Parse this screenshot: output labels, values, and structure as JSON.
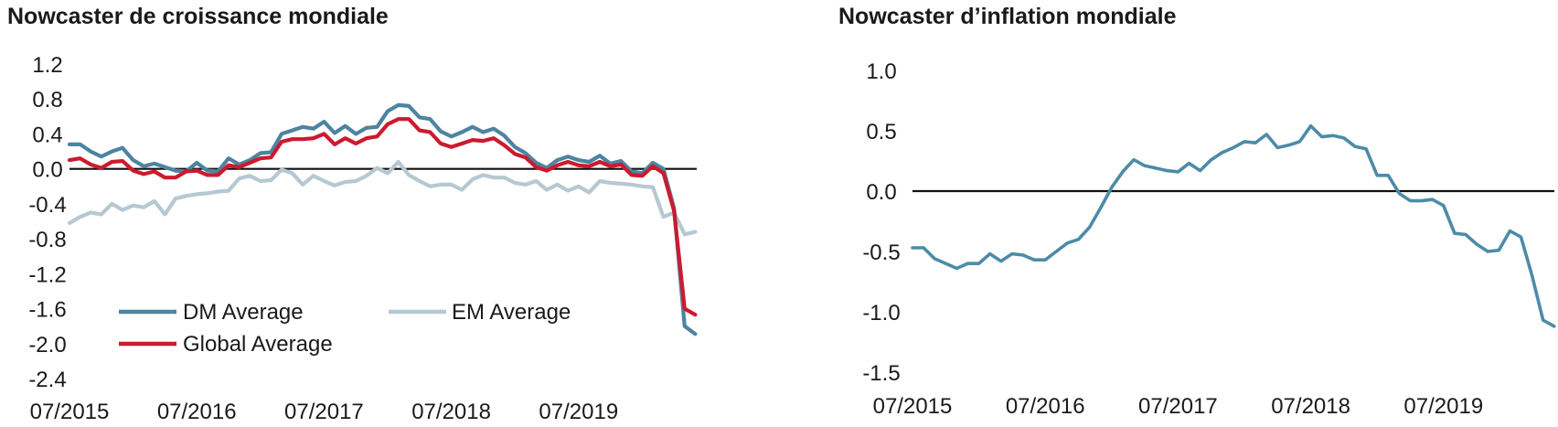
{
  "chart_data": [
    {
      "type": "line",
      "title": "Nowcaster de croissance mondiale",
      "ylim": [
        -2.4,
        1.2
      ],
      "yticks": [
        "1.2",
        "0.8",
        "0.4",
        "0.0",
        "-0.4",
        "-0.8",
        "-1.2",
        "-1.6",
        "-2.0",
        "-2.4"
      ],
      "xticks": [
        "07/2015",
        "07/2016",
        "07/2017",
        "07/2018",
        "07/2019"
      ],
      "x_start": "2015-07",
      "zero_line": true,
      "grid": false,
      "legend_position": "bottom-left",
      "series": [
        {
          "name": "DM Average",
          "color": "#4d84a0",
          "values": [
            0.28,
            0.28,
            0.2,
            0.14,
            0.2,
            0.24,
            0.1,
            0.03,
            0.06,
            0.02,
            -0.02,
            -0.03,
            0.07,
            -0.02,
            -0.03,
            0.12,
            0.05,
            0.1,
            0.18,
            0.19,
            0.4,
            0.44,
            0.48,
            0.46,
            0.54,
            0.41,
            0.49,
            0.4,
            0.47,
            0.48,
            0.66,
            0.73,
            0.72,
            0.59,
            0.57,
            0.43,
            0.37,
            0.42,
            0.48,
            0.42,
            0.46,
            0.38,
            0.25,
            0.18,
            0.07,
            0.01,
            0.1,
            0.14,
            0.1,
            0.08,
            0.15,
            0.06,
            0.09,
            -0.03,
            -0.05,
            0.07,
            0.0,
            -0.45,
            -1.8,
            -1.89
          ]
        },
        {
          "name": "EM Average",
          "color": "#b6c8d2",
          "values": [
            -0.62,
            -0.55,
            -0.5,
            -0.52,
            -0.4,
            -0.47,
            -0.42,
            -0.44,
            -0.37,
            -0.52,
            -0.34,
            -0.31,
            -0.29,
            -0.28,
            -0.26,
            -0.25,
            -0.11,
            -0.08,
            -0.14,
            -0.13,
            -0.01,
            -0.05,
            -0.18,
            -0.08,
            -0.14,
            -0.19,
            -0.15,
            -0.14,
            -0.08,
            0.01,
            -0.05,
            0.08,
            -0.07,
            -0.14,
            -0.2,
            -0.18,
            -0.18,
            -0.24,
            -0.12,
            -0.07,
            -0.1,
            -0.1,
            -0.16,
            -0.18,
            -0.14,
            -0.24,
            -0.18,
            -0.25,
            -0.2,
            -0.27,
            -0.14,
            -0.16,
            -0.17,
            -0.18,
            -0.2,
            -0.21,
            -0.55,
            -0.5,
            -0.75,
            -0.72
          ]
        },
        {
          "name": "Global Average",
          "color": "#cc1a2e",
          "values": [
            0.1,
            0.12,
            0.05,
            0.01,
            0.08,
            0.09,
            -0.02,
            -0.06,
            -0.03,
            -0.1,
            -0.1,
            -0.03,
            -0.02,
            -0.07,
            -0.07,
            0.04,
            0.02,
            0.07,
            0.12,
            0.13,
            0.31,
            0.34,
            0.34,
            0.35,
            0.4,
            0.28,
            0.35,
            0.29,
            0.35,
            0.37,
            0.51,
            0.57,
            0.57,
            0.44,
            0.42,
            0.29,
            0.25,
            0.29,
            0.33,
            0.32,
            0.35,
            0.27,
            0.17,
            0.13,
            0.02,
            -0.02,
            0.04,
            0.08,
            0.04,
            0.03,
            0.08,
            0.03,
            0.05,
            -0.07,
            -0.08,
            0.03,
            -0.05,
            -0.48,
            -1.6,
            -1.67
          ]
        }
      ]
    },
    {
      "type": "line",
      "title": "Nowcaster d’inflation mondiale",
      "ylim": [
        -1.5,
        1.0
      ],
      "yticks": [
        "1.0",
        "0.5",
        "0.0",
        "-0.5",
        "-1.0",
        "-1.5"
      ],
      "xticks": [
        "07/2015",
        "07/2016",
        "07/2017",
        "07/2018",
        "07/2019"
      ],
      "x_start": "2015-07",
      "zero_line": true,
      "grid": false,
      "series": [
        {
          "name": "",
          "color": "#4d8ba8",
          "values": [
            -0.47,
            -0.47,
            -0.56,
            -0.6,
            -0.64,
            -0.6,
            -0.6,
            -0.52,
            -0.58,
            -0.52,
            -0.53,
            -0.57,
            -0.57,
            -0.5,
            -0.43,
            -0.4,
            -0.3,
            -0.14,
            0.03,
            0.16,
            0.26,
            0.21,
            0.19,
            0.17,
            0.16,
            0.23,
            0.17,
            0.26,
            0.32,
            0.36,
            0.41,
            0.4,
            0.47,
            0.36,
            0.38,
            0.41,
            0.54,
            0.45,
            0.46,
            0.44,
            0.37,
            0.35,
            0.13,
            0.13,
            -0.02,
            -0.08,
            -0.08,
            -0.07,
            -0.12,
            -0.35,
            -0.36,
            -0.44,
            -0.5,
            -0.49,
            -0.33,
            -0.38,
            -0.7,
            -1.07,
            -1.12
          ]
        }
      ]
    }
  ]
}
